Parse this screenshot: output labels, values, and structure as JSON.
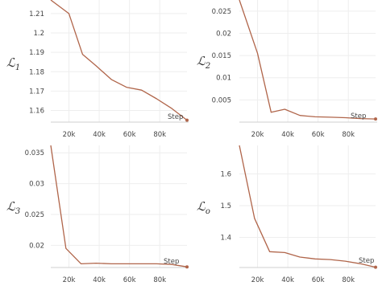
{
  "chart_data": [
    {
      "type": "line",
      "ylabel": "ℒ",
      "ylabel_sub": "1",
      "xlabel": "Step",
      "xlim": [
        8000,
        98000
      ],
      "ylim": [
        1.154,
        1.217
      ],
      "xticks": [
        20000,
        40000,
        60000,
        80000
      ],
      "xtick_labels": [
        "20k",
        "40k",
        "60k",
        "80k"
      ],
      "yticks": [
        1.16,
        1.17,
        1.18,
        1.19,
        1.2,
        1.21
      ],
      "ytick_labels": [
        "1.16",
        "1.17",
        "1.18",
        "1.19",
        "1.2",
        "1.21"
      ],
      "grid": true,
      "series": [
        {
          "x": [
            8000,
            20000,
            29000,
            38000,
            48000,
            58000,
            68000,
            78000,
            88000,
            98000
          ],
          "y": [
            1.217,
            1.21,
            1.189,
            1.183,
            1.176,
            1.172,
            1.1705,
            1.166,
            1.161,
            1.155
          ]
        }
      ]
    },
    {
      "type": "line",
      "ylabel": "ℒ",
      "ylabel_sub": "2",
      "xlabel": "Step",
      "xlim": [
        8000,
        98000
      ],
      "ylim": [
        0,
        0.0275
      ],
      "xticks": [
        20000,
        40000,
        60000,
        80000
      ],
      "xtick_labels": [
        "20k",
        "40k",
        "60k",
        "80k"
      ],
      "yticks": [
        0.005,
        0.01,
        0.015,
        0.02,
        0.025
      ],
      "ytick_labels": [
        "0.005",
        "0.01",
        "0.015",
        "0.02",
        "0.025"
      ],
      "grid": true,
      "series": [
        {
          "x": [
            8000,
            20000,
            29000,
            38000,
            48000,
            58000,
            68000,
            78000,
            88000,
            98000
          ],
          "y": [
            0.0275,
            0.0155,
            0.0022,
            0.0029,
            0.0015,
            0.0012,
            0.0011,
            0.001,
            0.0008,
            0.0007
          ]
        }
      ]
    },
    {
      "type": "line",
      "ylabel": "ℒ",
      "ylabel_sub": "3",
      "xlabel": "Step",
      "xlim": [
        8000,
        98000
      ],
      "ylim": [
        0.0164,
        0.0362
      ],
      "xticks": [
        20000,
        40000,
        60000,
        80000
      ],
      "xtick_labels": [
        "20k",
        "40k",
        "60k",
        "80k"
      ],
      "yticks": [
        0.02,
        0.025,
        0.03,
        0.035
      ],
      "ytick_labels": [
        "0.02",
        "0.025",
        "0.03",
        "0.035"
      ],
      "grid": true,
      "series": [
        {
          "x": [
            8000,
            18000,
            28000,
            38000,
            48000,
            58000,
            68000,
            78000,
            88000,
            98000
          ],
          "y": [
            0.0362,
            0.0195,
            0.017,
            0.0171,
            0.017,
            0.017,
            0.017,
            0.017,
            0.0169,
            0.0165
          ]
        }
      ]
    },
    {
      "type": "line",
      "ylabel": "ℒ",
      "ylabel_sub": "o",
      "xlabel": "Step",
      "xlim": [
        8000,
        98000
      ],
      "ylim": [
        1.305,
        1.69
      ],
      "xticks": [
        20000,
        40000,
        60000,
        80000
      ],
      "xtick_labels": [
        "20k",
        "40k",
        "60k",
        "80k"
      ],
      "yticks": [
        1.4,
        1.5,
        1.6
      ],
      "ytick_labels": [
        "1.4",
        "1.5",
        "1.6"
      ],
      "grid": true,
      "series": [
        {
          "x": [
            8000,
            18000,
            28000,
            38000,
            48000,
            58000,
            68000,
            78000,
            88000,
            98000
          ],
          "y": [
            1.69,
            1.46,
            1.355,
            1.352,
            1.338,
            1.332,
            1.33,
            1.325,
            1.317,
            1.306
          ]
        }
      ]
    }
  ],
  "colors": {
    "line": "#b0654a",
    "grid": "#eeeeee",
    "tick_text": "#444444"
  }
}
